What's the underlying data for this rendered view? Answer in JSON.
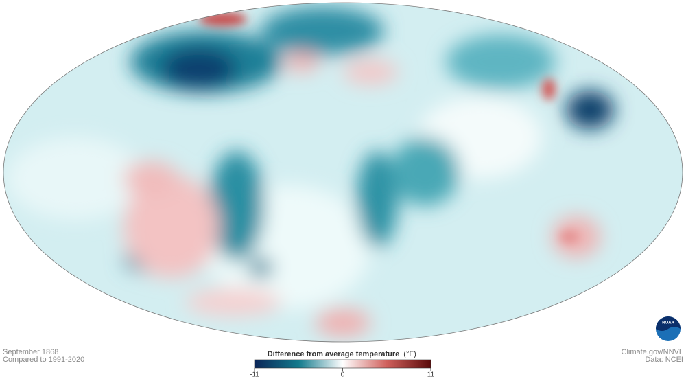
{
  "header": {
    "date": "September 1868",
    "baseline": "Compared to 1991-2020"
  },
  "credits": {
    "source": "Climate.gov/NNVL",
    "data": "Data: NCEI"
  },
  "logo": "NOAA",
  "legend": {
    "title": "Difference from average temperature",
    "unit": "(°F)",
    "range": [
      -11,
      11
    ],
    "ticks": [
      -11,
      0,
      11
    ]
  }
}
